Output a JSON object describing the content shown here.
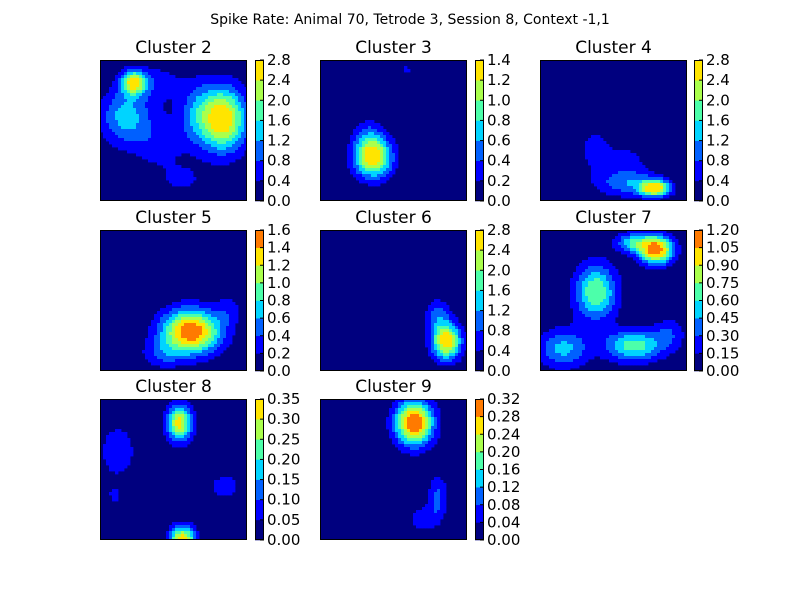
{
  "figure": {
    "title": "Spike Rate: Animal 70, Tetrode 3, Session 8, Context -1,1"
  },
  "colors": {
    "jet_levels": [
      "#00007f",
      "#0000ff",
      "#0060ff",
      "#00d4ff",
      "#4cffaa",
      "#aaff4c",
      "#ffe500",
      "#ff7a00",
      "#b20000"
    ],
    "background_level": "#00008f",
    "axes_frame": "#000000"
  },
  "chart_data": [
    {
      "type": "heatmap",
      "title": "Cluster 2",
      "colorbar_ticks": [
        "0.0",
        "0.4",
        "0.8",
        "1.2",
        "1.6",
        "2.0",
        "2.4",
        "2.8"
      ],
      "vmax": 2.8,
      "peaks": [
        {
          "x": 0.84,
          "y": 0.42,
          "height": 2.75,
          "sx": 0.11,
          "sy": 0.16
        },
        {
          "x": 0.66,
          "y": 0.38,
          "height": 0.9,
          "sx": 0.09,
          "sy": 0.16
        },
        {
          "x": 0.23,
          "y": 0.16,
          "height": 2.4,
          "sx": 0.06,
          "sy": 0.06
        },
        {
          "x": 0.17,
          "y": 0.4,
          "height": 1.35,
          "sx": 0.12,
          "sy": 0.14
        },
        {
          "x": 0.4,
          "y": 0.58,
          "height": 0.6,
          "sx": 0.13,
          "sy": 0.14
        },
        {
          "x": 0.4,
          "y": 0.16,
          "height": 0.55,
          "sx": 0.12,
          "sy": 0.1
        },
        {
          "x": 0.56,
          "y": 0.85,
          "height": 0.45,
          "sx": 0.12,
          "sy": 0.08
        }
      ]
    },
    {
      "type": "heatmap",
      "title": "Cluster 3",
      "colorbar_ticks": [
        "0.0",
        "0.2",
        "0.4",
        "0.6",
        "0.8",
        "1.0",
        "1.2",
        "1.4"
      ],
      "vmax": 1.4,
      "peaks": [
        {
          "x": 0.36,
          "y": 0.69,
          "height": 1.42,
          "sx": 0.09,
          "sy": 0.1
        },
        {
          "x": 0.33,
          "y": 0.53,
          "height": 0.3,
          "sx": 0.07,
          "sy": 0.09
        },
        {
          "x": 0.59,
          "y": 0.07,
          "height": 0.3,
          "sx": 0.03,
          "sy": 0.02
        }
      ]
    },
    {
      "type": "heatmap",
      "title": "Cluster 4",
      "colorbar_ticks": [
        "0.0",
        "0.4",
        "0.8",
        "1.2",
        "1.6",
        "2.0",
        "2.4",
        "2.8"
      ],
      "vmax": 2.8,
      "peaks": [
        {
          "x": 0.78,
          "y": 0.91,
          "height": 2.7,
          "sx": 0.07,
          "sy": 0.04
        },
        {
          "x": 0.6,
          "y": 0.87,
          "height": 1.1,
          "sx": 0.15,
          "sy": 0.07
        },
        {
          "x": 0.37,
          "y": 0.63,
          "height": 0.5,
          "sx": 0.1,
          "sy": 0.14
        },
        {
          "x": 0.6,
          "y": 0.7,
          "height": 0.45,
          "sx": 0.1,
          "sy": 0.08
        }
      ]
    },
    {
      "type": "heatmap",
      "title": "Cluster 5",
      "colorbar_ticks": [
        "0.0",
        "0.2",
        "0.4",
        "0.6",
        "0.8",
        "1.0",
        "1.2",
        "1.4",
        "1.6"
      ],
      "vmax": 1.6,
      "peaks": [
        {
          "x": 0.62,
          "y": 0.72,
          "height": 1.62,
          "sx": 0.14,
          "sy": 0.11
        },
        {
          "x": 0.42,
          "y": 0.88,
          "height": 0.35,
          "sx": 0.1,
          "sy": 0.07
        },
        {
          "x": 0.88,
          "y": 0.56,
          "height": 0.25,
          "sx": 0.06,
          "sy": 0.08
        }
      ]
    },
    {
      "type": "heatmap",
      "title": "Cluster 6",
      "colorbar_ticks": [
        "0.0",
        "0.4",
        "0.8",
        "1.2",
        "1.6",
        "2.0",
        "2.4",
        "2.8"
      ],
      "vmax": 2.8,
      "peaks": [
        {
          "x": 0.86,
          "y": 0.79,
          "height": 2.8,
          "sx": 0.07,
          "sy": 0.09
        },
        {
          "x": 0.8,
          "y": 0.6,
          "height": 0.9,
          "sx": 0.06,
          "sy": 0.08
        }
      ]
    },
    {
      "type": "heatmap",
      "title": "Cluster 7",
      "colorbar_ticks": [
        "0.00",
        "0.15",
        "0.30",
        "0.45",
        "0.60",
        "0.75",
        "0.90",
        "1.05",
        "1.20"
      ],
      "vmax": 1.2,
      "peaks": [
        {
          "x": 0.79,
          "y": 0.14,
          "height": 1.2,
          "sx": 0.08,
          "sy": 0.07
        },
        {
          "x": 0.63,
          "y": 0.09,
          "height": 0.55,
          "sx": 0.08,
          "sy": 0.05
        },
        {
          "x": 0.38,
          "y": 0.44,
          "height": 0.75,
          "sx": 0.1,
          "sy": 0.14
        },
        {
          "x": 0.64,
          "y": 0.82,
          "height": 0.68,
          "sx": 0.14,
          "sy": 0.08
        },
        {
          "x": 0.16,
          "y": 0.84,
          "height": 0.5,
          "sx": 0.12,
          "sy": 0.1
        },
        {
          "x": 0.88,
          "y": 0.73,
          "height": 0.25,
          "sx": 0.08,
          "sy": 0.08
        }
      ]
    },
    {
      "type": "heatmap",
      "title": "Cluster 8",
      "colorbar_ticks": [
        "0.00",
        "0.05",
        "0.10",
        "0.15",
        "0.20",
        "0.25",
        "0.30",
        "0.35"
      ],
      "vmax": 0.35,
      "peaks": [
        {
          "x": 0.54,
          "y": 0.17,
          "height": 0.32,
          "sx": 0.06,
          "sy": 0.09
        },
        {
          "x": 0.56,
          "y": 1.0,
          "height": 0.35,
          "sx": 0.06,
          "sy": 0.07
        },
        {
          "x": 0.12,
          "y": 0.37,
          "height": 0.09,
          "sx": 0.09,
          "sy": 0.14
        },
        {
          "x": 0.85,
          "y": 0.62,
          "height": 0.08,
          "sx": 0.08,
          "sy": 0.07
        },
        {
          "x": 0.1,
          "y": 0.68,
          "height": 0.07,
          "sx": 0.03,
          "sy": 0.04
        }
      ]
    },
    {
      "type": "heatmap",
      "title": "Cluster 9",
      "colorbar_ticks": [
        "0.00",
        "0.04",
        "0.08",
        "0.12",
        "0.16",
        "0.20",
        "0.24",
        "0.28",
        "0.32"
      ],
      "vmax": 0.32,
      "peaks": [
        {
          "x": 0.64,
          "y": 0.17,
          "height": 0.33,
          "sx": 0.09,
          "sy": 0.11
        },
        {
          "x": 0.8,
          "y": 0.7,
          "height": 0.09,
          "sx": 0.05,
          "sy": 0.11
        },
        {
          "x": 0.7,
          "y": 0.85,
          "height": 0.07,
          "sx": 0.07,
          "sy": 0.06
        }
      ]
    }
  ]
}
